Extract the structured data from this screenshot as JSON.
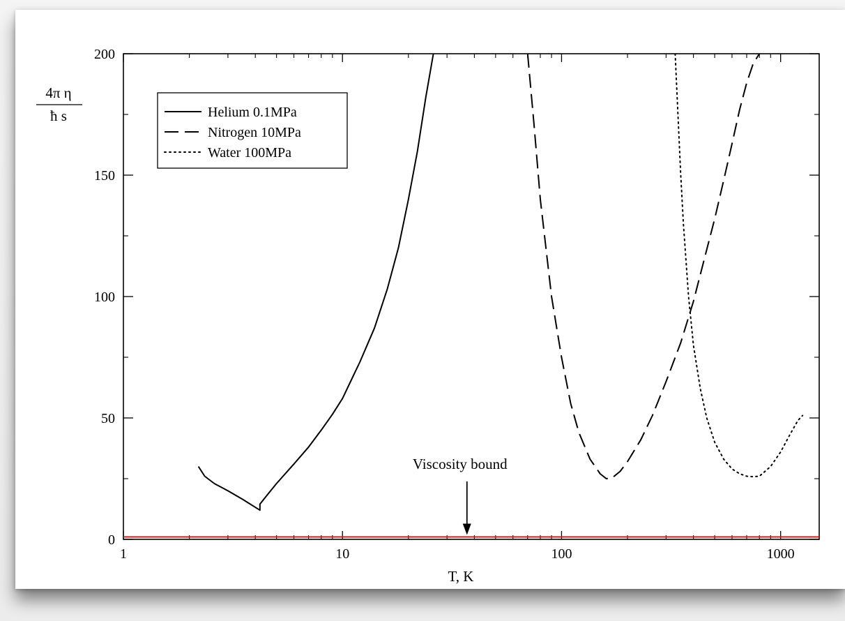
{
  "chart_data": {
    "type": "line",
    "xscale": "log",
    "xlim": [
      1,
      1500
    ],
    "ylim": [
      0,
      200
    ],
    "xlabel": "T, K",
    "ylabel_numerator": "4π η",
    "ylabel_denominator": "ħ s",
    "xticks": [
      1,
      10,
      100,
      1000
    ],
    "xtick_labels": [
      "1",
      "10",
      "100",
      "1000"
    ],
    "yticks": [
      0,
      50,
      100,
      150,
      200
    ],
    "ytick_labels": [
      "0",
      "50",
      "100",
      "150",
      "200"
    ],
    "legend_position": "top-left",
    "grid": false,
    "series": [
      {
        "name": "Helium 0.1MPa",
        "dash": "solid",
        "color": "#000000",
        "x": [
          2.2,
          2.35,
          2.6,
          3.0,
          3.5,
          4.2,
          4.2,
          4.6,
          5.0,
          6.0,
          7.0,
          8.0,
          9.0,
          10.0,
          12.0,
          14.0,
          16.0,
          18.0,
          20.0,
          22.0,
          24.0,
          26.0
        ],
        "y": [
          30,
          26,
          23,
          20,
          16.5,
          12,
          14.5,
          19,
          23,
          31,
          38,
          45,
          51.5,
          58,
          73,
          87,
          103,
          120,
          140,
          160,
          182,
          200
        ]
      },
      {
        "name": "Nitrogen 10MPa",
        "dash": "long-dash",
        "color": "#000000",
        "x": [
          70,
          75,
          80,
          90,
          100,
          110,
          120,
          135,
          150,
          160,
          170,
          185,
          200,
          230,
          260,
          300,
          350,
          400,
          450,
          500,
          550,
          600,
          650,
          700,
          750,
          800
        ],
        "y": [
          200,
          170,
          140,
          100,
          75,
          56,
          44,
          33,
          27,
          25,
          25.3,
          28,
          32,
          41,
          51,
          65,
          81,
          98,
          116,
          132,
          148,
          163,
          177,
          188,
          196,
          200
        ]
      },
      {
        "name": "Water 100MPa",
        "dash": "dotted",
        "color": "#000000",
        "x": [
          330,
          340,
          350,
          360,
          380,
          400,
          430,
          460,
          500,
          550,
          600,
          650,
          700,
          750,
          800,
          900,
          1000,
          1100,
          1200,
          1260
        ],
        "y": [
          200,
          175,
          150,
          130,
          100,
          80,
          62,
          50,
          40,
          33,
          29,
          27,
          26,
          25.8,
          26,
          30,
          36,
          43,
          49,
          51
        ]
      }
    ],
    "reference_line": {
      "y": 1,
      "color": "#d01818"
    },
    "annotations": [
      {
        "text": "Viscosity bound",
        "arrow_to_x": 37,
        "arrow_to_y": 1
      }
    ]
  }
}
